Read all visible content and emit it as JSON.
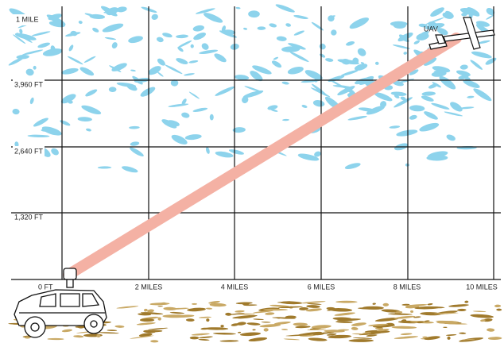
{
  "y_labels": [
    "1 MILE",
    "3,960 FT",
    "2,640 FT",
    "1,320 FT",
    "0 FT"
  ],
  "x_labels": [
    "2 MILES",
    "4 MILES",
    "6 MILES",
    "8 MILES",
    "10 MILES"
  ],
  "uav_label": "UAV"
}
